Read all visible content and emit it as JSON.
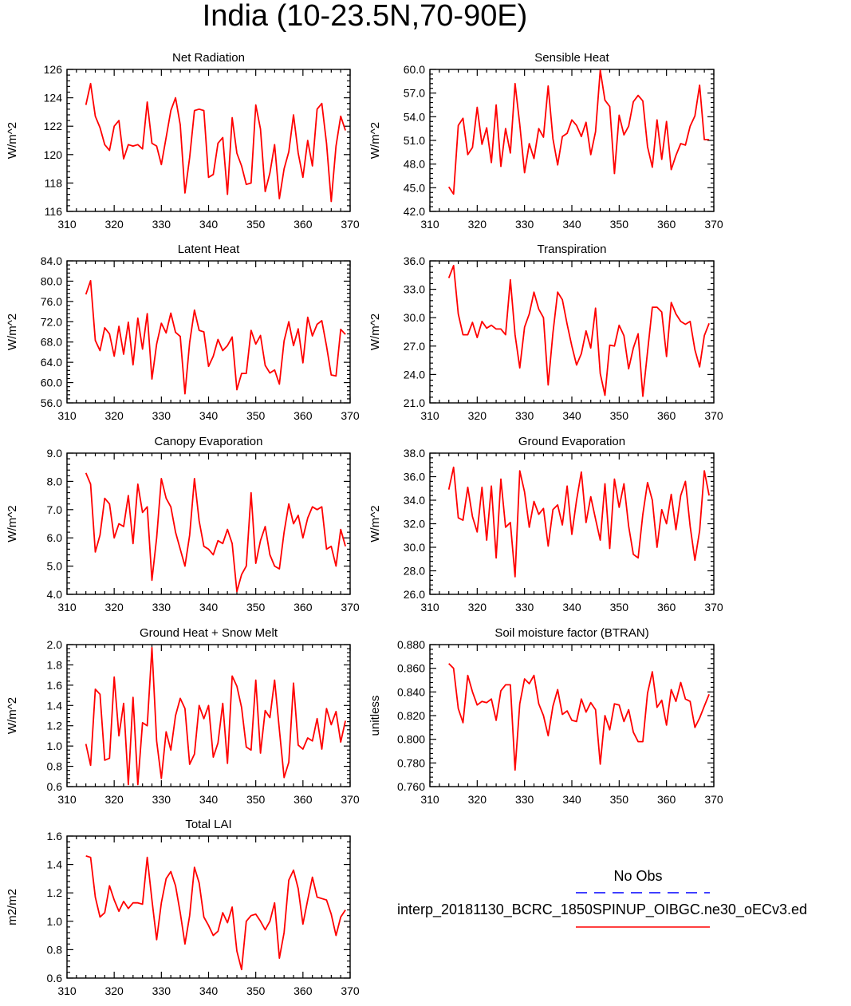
{
  "title": "India (10-23.5N,70-90E)",
  "legend": {
    "title": "No Obs",
    "experiment": "interp_20181130_BCRC_1850SPINUP_OIBGC.ne30_oECv3.ed",
    "obs_color": "#0000ff",
    "model_color": "#ff0000"
  },
  "chart_data": [
    {
      "type": "line",
      "title": "Net Radiation",
      "ylabel": "W/m^2",
      "xlim": [
        310,
        370
      ],
      "xticks": [
        310,
        320,
        330,
        340,
        350,
        360,
        370
      ],
      "ylim": [
        116,
        126
      ],
      "yticks": [
        116,
        118,
        120,
        122,
        124,
        126
      ],
      "ydec": 0,
      "x_start": 314,
      "values": [
        123.5,
        125.0,
        122.7,
        121.9,
        120.7,
        120.3,
        122.0,
        122.4,
        119.7,
        120.7,
        120.6,
        120.7,
        120.4,
        123.7,
        120.8,
        120.6,
        119.3,
        121.2,
        123.1,
        124.0,
        122.1,
        117.3,
        119.8,
        123.1,
        123.2,
        123.1,
        118.4,
        118.6,
        120.8,
        121.2,
        117.2,
        122.6,
        120.1,
        119.2,
        117.9,
        118.0,
        123.5,
        121.8,
        117.4,
        118.7,
        120.7,
        116.9,
        119.0,
        120.2,
        122.8,
        120.1,
        118.4,
        121.0,
        119.2,
        123.2,
        123.6,
        120.8,
        116.7,
        120.6,
        122.7,
        121.7
      ]
    },
    {
      "type": "line",
      "title": "Sensible Heat",
      "ylabel": "W/m^2",
      "xlim": [
        310,
        370
      ],
      "xticks": [
        310,
        320,
        330,
        340,
        350,
        360,
        370
      ],
      "ylim": [
        42,
        60
      ],
      "yticks": [
        42,
        45,
        48,
        51,
        54,
        57,
        60
      ],
      "ydec": 1,
      "x_start": 314,
      "values": [
        45.1,
        44.2,
        52.9,
        53.8,
        49.2,
        50.1,
        55.2,
        50.5,
        52.6,
        48.2,
        55.5,
        47.7,
        52.5,
        49.4,
        58.2,
        53.0,
        46.9,
        50.6,
        48.7,
        52.5,
        51.4,
        57.9,
        51.2,
        47.9,
        51.5,
        51.9,
        53.6,
        52.9,
        51.5,
        53.3,
        49.2,
        52.1,
        59.9,
        56.1,
        55.3,
        46.8,
        54.2,
        51.7,
        52.8,
        55.9,
        56.7,
        56.0,
        50.2,
        47.6,
        53.6,
        48.6,
        53.4,
        47.3,
        49.1,
        50.6,
        50.4,
        52.8,
        54.1,
        58.0,
        51.1,
        51.1
      ]
    },
    {
      "type": "line",
      "title": "Latent Heat",
      "ylabel": "W/m^2",
      "xlim": [
        310,
        370
      ],
      "xticks": [
        310,
        320,
        330,
        340,
        350,
        360,
        370
      ],
      "ylim": [
        56,
        84
      ],
      "yticks": [
        56,
        60,
        64,
        68,
        72,
        76,
        80,
        84
      ],
      "ydec": 1,
      "x_start": 314,
      "values": [
        77.4,
        80.1,
        68.3,
        66.3,
        70.8,
        69.6,
        65.2,
        71.1,
        65.6,
        71.9,
        63.5,
        72.7,
        66.6,
        73.6,
        60.7,
        67.6,
        71.7,
        69.8,
        73.7,
        69.9,
        69.1,
        57.8,
        67.9,
        74.3,
        70.3,
        70.0,
        63.2,
        65.2,
        68.5,
        66.3,
        67.3,
        69.0,
        58.6,
        61.8,
        61.8,
        70.3,
        67.6,
        69.3,
        63.4,
        61.9,
        62.5,
        59.7,
        68.2,
        72.0,
        67.3,
        70.6,
        63.9,
        72.9,
        69.2,
        71.5,
        72.2,
        67.2,
        61.5,
        61.3,
        70.5,
        69.5
      ]
    },
    {
      "type": "line",
      "title": "Transpiration",
      "ylabel": "W/m^2",
      "xlim": [
        310,
        370
      ],
      "xticks": [
        310,
        320,
        330,
        340,
        350,
        360,
        370
      ],
      "ylim": [
        21,
        36
      ],
      "yticks": [
        21,
        24,
        27,
        30,
        33,
        36
      ],
      "ydec": 1,
      "x_start": 314,
      "values": [
        34.2,
        35.5,
        30.4,
        28.2,
        28.2,
        29.5,
        27.9,
        29.6,
        28.9,
        29.2,
        28.8,
        28.8,
        28.2,
        34.0,
        28.2,
        24.7,
        29.0,
        30.4,
        32.7,
        30.9,
        30.0,
        22.9,
        28.4,
        32.7,
        31.9,
        29.3,
        27.0,
        25.0,
        26.2,
        28.6,
        26.8,
        31.0,
        24.1,
        21.8,
        27.1,
        27.0,
        29.2,
        28.1,
        24.6,
        26.8,
        28.3,
        21.7,
        26.4,
        31.1,
        31.1,
        30.6,
        25.9,
        31.6,
        30.4,
        29.6,
        29.3,
        29.6,
        26.6,
        24.8,
        28.1,
        29.4
      ]
    },
    {
      "type": "line",
      "title": "Canopy Evaporation",
      "ylabel": "W/m^2",
      "xlim": [
        310,
        370
      ],
      "xticks": [
        310,
        320,
        330,
        340,
        350,
        360,
        370
      ],
      "ylim": [
        4,
        9
      ],
      "yticks": [
        4,
        5,
        6,
        7,
        8,
        9
      ],
      "ydec": 1,
      "x_start": 314,
      "values": [
        8.3,
        7.9,
        5.5,
        6.1,
        7.4,
        7.2,
        6.0,
        6.5,
        6.4,
        7.5,
        5.8,
        7.9,
        6.9,
        7.1,
        4.5,
        6.0,
        8.1,
        7.4,
        7.1,
        6.2,
        5.6,
        5.0,
        6.1,
        8.1,
        6.6,
        5.7,
        5.6,
        5.4,
        5.9,
        5.8,
        6.3,
        5.8,
        4.1,
        4.7,
        5.0,
        7.6,
        5.1,
        5.9,
        6.4,
        5.4,
        5.0,
        4.9,
        6.2,
        7.2,
        6.5,
        6.8,
        6.0,
        6.7,
        7.1,
        7.0,
        7.1,
        5.6,
        5.7,
        5.0,
        6.3,
        5.7
      ]
    },
    {
      "type": "line",
      "title": "Ground Evaporation",
      "ylabel": "W/m^2",
      "xlim": [
        310,
        370
      ],
      "xticks": [
        310,
        320,
        330,
        340,
        350,
        360,
        370
      ],
      "ylim": [
        26,
        38
      ],
      "yticks": [
        26,
        28,
        30,
        32,
        34,
        36,
        38
      ],
      "ydec": 1,
      "x_start": 314,
      "values": [
        34.9,
        36.8,
        32.5,
        32.3,
        35.1,
        32.6,
        31.3,
        35.1,
        30.6,
        35.2,
        29.1,
        35.8,
        31.7,
        32.1,
        27.5,
        36.5,
        34.7,
        31.7,
        33.9,
        32.8,
        33.3,
        30.1,
        33.2,
        33.6,
        31.9,
        35.2,
        31.1,
        34.0,
        36.4,
        32.1,
        34.3,
        32.4,
        30.6,
        35.4,
        29.9,
        35.8,
        33.4,
        35.4,
        31.8,
        29.4,
        29.1,
        32.8,
        35.5,
        34.0,
        30.0,
        33.2,
        32.0,
        34.5,
        31.5,
        34.4,
        35.6,
        31.8,
        28.9,
        31.4,
        36.5,
        34.4
      ]
    },
    {
      "type": "line",
      "title": "Ground Heat + Snow Melt",
      "ylabel": "W/m^2",
      "xlim": [
        310,
        370
      ],
      "xticks": [
        310,
        320,
        330,
        340,
        350,
        360,
        370
      ],
      "ylim": [
        0.6,
        2.0
      ],
      "yticks": [
        0.6,
        0.8,
        1.0,
        1.2,
        1.4,
        1.6,
        1.8,
        2.0
      ],
      "ydec": 1,
      "x_start": 314,
      "values": [
        1.02,
        0.81,
        1.56,
        1.51,
        0.86,
        0.88,
        1.68,
        1.1,
        1.42,
        0.62,
        1.48,
        0.62,
        1.23,
        1.2,
        1.97,
        1.05,
        0.68,
        1.14,
        0.96,
        1.3,
        1.47,
        1.37,
        0.82,
        0.92,
        1.4,
        1.27,
        1.4,
        0.89,
        1.03,
        1.42,
        0.83,
        1.69,
        1.59,
        1.38,
        0.99,
        0.96,
        1.65,
        0.93,
        1.35,
        1.28,
        1.65,
        1.16,
        0.69,
        0.84,
        1.62,
        1.01,
        0.97,
        1.08,
        1.05,
        1.27,
        0.97,
        1.37,
        1.21,
        1.34,
        1.04,
        1.25
      ]
    },
    {
      "type": "line",
      "title": "Soil moisture factor (BTRAN)",
      "ylabel": "unitless",
      "xlim": [
        310,
        370
      ],
      "xticks": [
        310,
        320,
        330,
        340,
        350,
        360,
        370
      ],
      "ylim": [
        0.76,
        0.88
      ],
      "yticks": [
        0.76,
        0.78,
        0.8,
        0.82,
        0.84,
        0.86,
        0.88
      ],
      "ydec": 3,
      "x_start": 314,
      "values": [
        0.864,
        0.86,
        0.826,
        0.814,
        0.854,
        0.84,
        0.829,
        0.832,
        0.831,
        0.834,
        0.816,
        0.841,
        0.846,
        0.846,
        0.774,
        0.83,
        0.851,
        0.847,
        0.854,
        0.83,
        0.82,
        0.803,
        0.828,
        0.842,
        0.821,
        0.824,
        0.816,
        0.815,
        0.834,
        0.823,
        0.831,
        0.825,
        0.779,
        0.82,
        0.808,
        0.83,
        0.829,
        0.815,
        0.825,
        0.806,
        0.798,
        0.798,
        0.839,
        0.857,
        0.827,
        0.833,
        0.812,
        0.842,
        0.832,
        0.848,
        0.834,
        0.832,
        0.81,
        0.818,
        0.828,
        0.838
      ]
    },
    {
      "type": "line",
      "title": "Total LAI",
      "ylabel": "m2/m2",
      "xlim": [
        310,
        370
      ],
      "xticks": [
        310,
        320,
        330,
        340,
        350,
        360,
        370
      ],
      "ylim": [
        0.6,
        1.6
      ],
      "yticks": [
        0.6,
        0.8,
        1.0,
        1.2,
        1.4,
        1.6
      ],
      "ydec": 1,
      "x_start": 314,
      "values": [
        1.46,
        1.45,
        1.17,
        1.03,
        1.06,
        1.25,
        1.15,
        1.07,
        1.14,
        1.09,
        1.13,
        1.13,
        1.12,
        1.45,
        1.15,
        0.87,
        1.13,
        1.3,
        1.35,
        1.25,
        1.06,
        0.84,
        1.04,
        1.38,
        1.27,
        1.03,
        0.97,
        0.9,
        0.93,
        1.06,
        0.99,
        1.1,
        0.79,
        0.66,
        1.0,
        1.04,
        1.05,
        1.0,
        0.94,
        1.0,
        1.13,
        0.74,
        0.92,
        1.29,
        1.36,
        1.23,
        0.98,
        1.15,
        1.31,
        1.17,
        1.16,
        1.15,
        1.05,
        0.9,
        1.03,
        1.08
      ]
    }
  ]
}
